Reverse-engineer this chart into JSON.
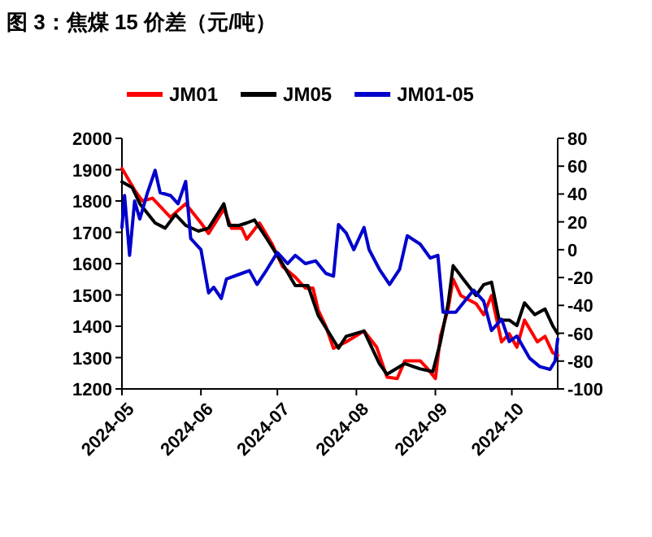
{
  "chart_data": {
    "type": "line",
    "title": "图 3：焦煤 15 价差（元/吨）",
    "xlim": [
      "2024-05-01",
      "2024-10-19"
    ],
    "xticks": [
      {
        "value": "2024-05-01",
        "label": "2024-05"
      },
      {
        "value": "2024-06-01",
        "label": "2024-06"
      },
      {
        "value": "2024-07-01",
        "label": "2024-07"
      },
      {
        "value": "2024-08-01",
        "label": "2024-08"
      },
      {
        "value": "2024-09-01",
        "label": "2024-09"
      },
      {
        "value": "2024-10-01",
        "label": "2024-10"
      }
    ],
    "ylim": [
      1200,
      2000
    ],
    "yticks": [
      1200,
      1300,
      1400,
      1500,
      1600,
      1700,
      1800,
      1900,
      2000
    ],
    "y2lim": [
      -100,
      80
    ],
    "y2ticks": [
      -100,
      -80,
      -60,
      -40,
      -20,
      0,
      20,
      40,
      60,
      80
    ],
    "legend": "top",
    "grid": false,
    "series": [
      {
        "name": "JM01",
        "color": "#ff0000",
        "x": [
          "2024-05-01",
          "2024-05-06",
          "2024-05-09",
          "2024-05-13",
          "2024-05-16",
          "2024-05-20",
          "2024-05-26",
          "2024-06-01",
          "2024-06-04",
          "2024-06-10",
          "2024-06-13",
          "2024-06-17",
          "2024-06-19",
          "2024-06-24",
          "2024-06-29",
          "2024-07-03",
          "2024-07-08",
          "2024-07-12",
          "2024-07-15",
          "2024-07-17",
          "2024-07-20",
          "2024-07-23",
          "2024-07-28",
          "2024-08-04",
          "2024-08-09",
          "2024-08-13",
          "2024-08-17",
          "2024-08-20",
          "2024-08-26",
          "2024-08-29",
          "2024-09-01",
          "2024-09-03",
          "2024-09-06",
          "2024-09-08",
          "2024-09-11",
          "2024-09-17",
          "2024-09-20",
          "2024-09-23",
          "2024-09-27",
          "2024-09-30",
          "2024-10-03",
          "2024-10-06",
          "2024-10-11",
          "2024-10-14",
          "2024-10-17",
          "2024-10-19"
        ],
        "values": [
          1904,
          1835,
          1800,
          1809,
          1783,
          1748,
          1791,
          1730,
          1696,
          1774,
          1713,
          1713,
          1678,
          1730,
          1661,
          1591,
          1557,
          1522,
          1522,
          1452,
          1400,
          1330,
          1350,
          1385,
          1333,
          1238,
          1233,
          1290,
          1290,
          1264,
          1233,
          1368,
          1455,
          1550,
          1498,
          1472,
          1437,
          1498,
          1350,
          1376,
          1333,
          1420,
          1350,
          1368,
          1316,
          1307
        ]
      },
      {
        "name": "JM05",
        "color": "#000000",
        "x": [
          "2024-05-01",
          "2024-05-05",
          "2024-05-08",
          "2024-05-14",
          "2024-05-18",
          "2024-05-22",
          "2024-05-26",
          "2024-05-31",
          "2024-06-04",
          "2024-06-10",
          "2024-06-12",
          "2024-06-16",
          "2024-06-19",
          "2024-06-22",
          "2024-06-27",
          "2024-07-03",
          "2024-07-08",
          "2024-07-13",
          "2024-07-17",
          "2024-07-21",
          "2024-07-25",
          "2024-07-28",
          "2024-08-04",
          "2024-08-10",
          "2024-08-13",
          "2024-08-20",
          "2024-08-26",
          "2024-08-31",
          "2024-09-03",
          "2024-09-06",
          "2024-09-08",
          "2024-09-12",
          "2024-09-17",
          "2024-09-20",
          "2024-09-23",
          "2024-09-26",
          "2024-09-30",
          "2024-10-03",
          "2024-10-06",
          "2024-10-10",
          "2024-10-14",
          "2024-10-17",
          "2024-10-19"
        ],
        "values": [
          1861,
          1843,
          1791,
          1730,
          1713,
          1757,
          1722,
          1704,
          1713,
          1791,
          1722,
          1722,
          1730,
          1739,
          1678,
          1600,
          1530,
          1530,
          1435,
          1383,
          1330,
          1368,
          1385,
          1281,
          1247,
          1281,
          1264,
          1255,
          1350,
          1472,
          1593,
          1550,
          1498,
          1533,
          1541,
          1420,
          1420,
          1402,
          1475,
          1437,
          1455,
          1402,
          1376
        ]
      },
      {
        "name": "JM01-05",
        "color": "#0000cc",
        "axis": "y2",
        "x": [
          "2024-05-01",
          "2024-05-02",
          "2024-05-04",
          "2024-05-06",
          "2024-05-08",
          "2024-05-11",
          "2024-05-14",
          "2024-05-16",
          "2024-05-20",
          "2024-05-23",
          "2024-05-26",
          "2024-05-28",
          "2024-06-01",
          "2024-06-04",
          "2024-06-06",
          "2024-06-09",
          "2024-06-11",
          "2024-06-17",
          "2024-06-20",
          "2024-06-23",
          "2024-06-27",
          "2024-07-01",
          "2024-07-05",
          "2024-07-08",
          "2024-07-12",
          "2024-07-16",
          "2024-07-20",
          "2024-07-23",
          "2024-07-25",
          "2024-07-28",
          "2024-07-31",
          "2024-08-04",
          "2024-08-06",
          "2024-08-10",
          "2024-08-14",
          "2024-08-18",
          "2024-08-21",
          "2024-08-26",
          "2024-08-30",
          "2024-09-02",
          "2024-09-04",
          "2024-09-09",
          "2024-09-16",
          "2024-09-20",
          "2024-09-23",
          "2024-09-27",
          "2024-09-30",
          "2024-10-03",
          "2024-10-08",
          "2024-10-12",
          "2024-10-16",
          "2024-10-18",
          "2024-10-19"
        ],
        "values": [
          16,
          39,
          -4,
          35,
          22,
          41,
          57,
          41,
          39,
          33,
          49,
          8,
          0,
          -31,
          -27,
          -35,
          -21,
          -17,
          -15,
          -25,
          -14,
          -2,
          -10,
          -4,
          -10,
          -8,
          -17,
          -19,
          18,
          12,
          0,
          16,
          0,
          -14,
          -25,
          -14,
          10,
          4,
          -6,
          -4,
          -45,
          -45,
          -29,
          -37,
          -58,
          -50,
          -66,
          -62,
          -78,
          -84,
          -86,
          -80,
          -64
        ]
      }
    ]
  }
}
